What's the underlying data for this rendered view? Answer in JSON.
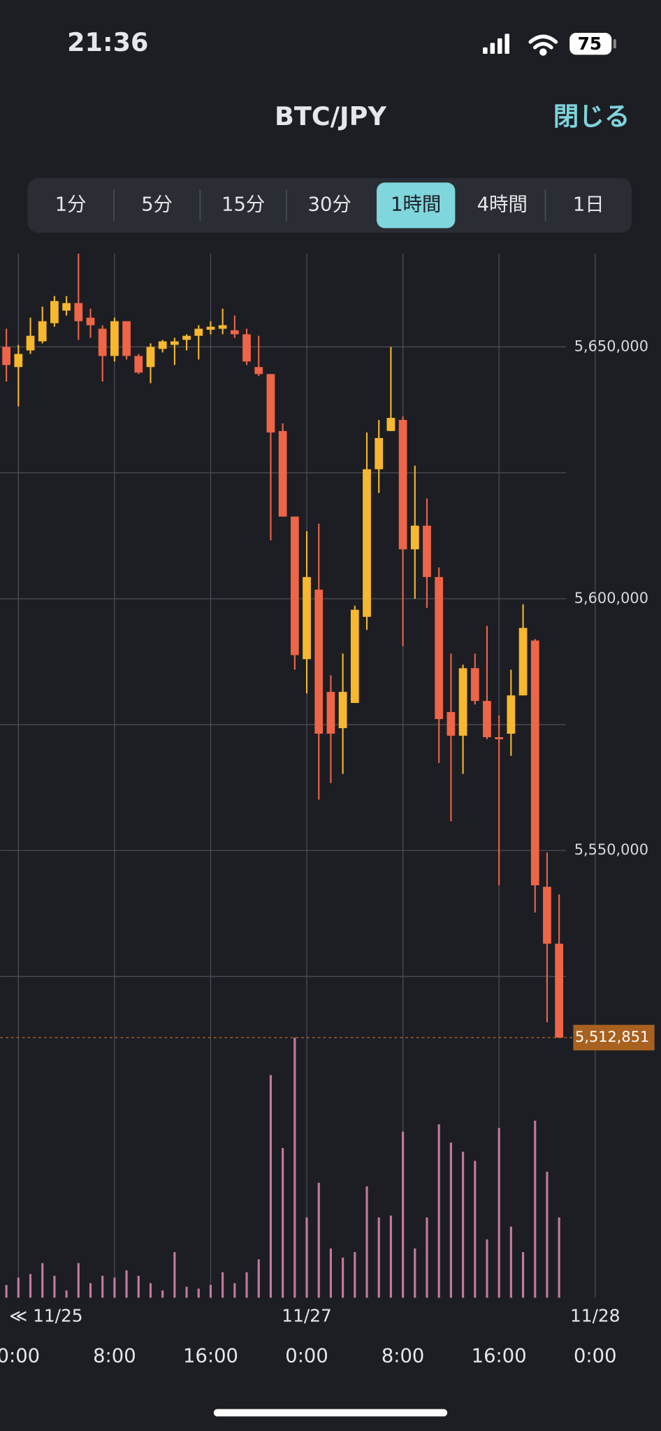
{
  "status_bar": {
    "time": "21:36",
    "battery": "75"
  },
  "header": {
    "title": "BTC/JPY",
    "close": "閉じる"
  },
  "tabs": {
    "items": [
      "1分",
      "5分",
      "15分",
      "30分",
      "1時間",
      "4時間",
      "1日"
    ],
    "selected": 4
  },
  "chart_data": {
    "type": "candlestick",
    "up_color": "#f7b82d",
    "down_color": "#ee6548",
    "volume_color": "#c47aa0",
    "grid": true,
    "x": [
      -1,
      0,
      1,
      2,
      3,
      4,
      5,
      6,
      7,
      8,
      9,
      10,
      11,
      12,
      13,
      14,
      15,
      16,
      17,
      18,
      19,
      20,
      21,
      22,
      23,
      24,
      25,
      26,
      27,
      28,
      29,
      30,
      31,
      32,
      33,
      34,
      35,
      36,
      37,
      38,
      39,
      40,
      41,
      42,
      43,
      44,
      45
    ],
    "open": [
      5650000,
      5646000,
      5649300,
      5651100,
      5654700,
      5657200,
      5658700,
      5655800,
      5653600,
      5648200,
      5655100,
      5648200,
      5646000,
      5649600,
      5650400,
      5651400,
      5652200,
      5653400,
      5653600,
      5653300,
      5652500,
      5646000,
      5644600,
      5633300,
      5616300,
      5588000,
      5601800,
      5581500,
      5574300,
      5579300,
      5596400,
      5625700,
      5633300,
      5635500,
      5609800,
      5614500,
      5604300,
      5577500,
      5572800,
      5586200,
      5579700,
      5572500,
      5573200,
      5580800,
      5591700,
      5542800,
      5531500
    ],
    "high": [
      5653600,
      5650400,
      5655800,
      5658000,
      5660100,
      5660100,
      5668500,
      5657600,
      5654300,
      5655800,
      5655100,
      5648600,
      5650700,
      5651400,
      5651800,
      5652500,
      5654300,
      5655100,
      5657600,
      5656200,
      5653600,
      5652200,
      5644600,
      5634800,
      5616300,
      5613400,
      5614900,
      5584800,
      5589100,
      5598600,
      5633000,
      5635500,
      5650000,
      5636200,
      5626400,
      5619900,
      5606200,
      5589100,
      5586900,
      5589100,
      5594600,
      5576800,
      5585900,
      5598900,
      5592000,
      5549600,
      5541300
    ],
    "low": [
      5643100,
      5638200,
      5648600,
      5650700,
      5654000,
      5656200,
      5651400,
      5651800,
      5643100,
      5647100,
      5647500,
      5644600,
      5642800,
      5648900,
      5646400,
      5649300,
      5647500,
      5652500,
      5652500,
      5651800,
      5646400,
      5644200,
      5611600,
      5616300,
      5585900,
      5581200,
      5560100,
      5563400,
      5565200,
      5579300,
      5593800,
      5621000,
      5633300,
      5590600,
      5600000,
      5598200,
      5567400,
      5555800,
      5565200,
      5579000,
      5572100,
      5543100,
      5568800,
      5580800,
      5537700,
      5515900,
      5512851
    ],
    "close": [
      5646400,
      5648600,
      5652200,
      5655100,
      5659100,
      5658700,
      5655100,
      5654300,
      5648200,
      5655100,
      5648200,
      5644900,
      5650000,
      5651100,
      5651100,
      5652200,
      5653600,
      5654000,
      5654300,
      5652500,
      5647100,
      5644600,
      5633000,
      5616300,
      5588800,
      5604300,
      5573200,
      5573200,
      5581500,
      5597800,
      5625700,
      5631900,
      5635900,
      5609800,
      5614500,
      5604300,
      5576100,
      5572800,
      5586200,
      5579700,
      5572500,
      5572100,
      5580800,
      5594200,
      5543100,
      5531500,
      5512851
    ],
    "volume": [
      14,
      22,
      26,
      38,
      24,
      8,
      38,
      16,
      24,
      22,
      30,
      24,
      16,
      8,
      50,
      12,
      10,
      14,
      28,
      16,
      28,
      42,
      244,
      164,
      285,
      88,
      126,
      54,
      44,
      50,
      122,
      88,
      90,
      182,
      54,
      88,
      190,
      170,
      160,
      150,
      64,
      186,
      78,
      50,
      194,
      138,
      88
    ],
    "xlim": [
      -1.52,
      53.47
    ],
    "ylim": [
      5461200,
      5668500
    ],
    "yticks": [
      {
        "value": 5550000,
        "label": "5,550,000"
      },
      {
        "value": 5600000,
        "label": "5,600,000"
      },
      {
        "value": 5650000,
        "label": "5,650,000"
      }
    ],
    "minor_grid": [
      5525000,
      5575000,
      5625000
    ],
    "xticks": [
      {
        "value": 0,
        "label": "0:00"
      },
      {
        "value": 8,
        "label": "8:00"
      },
      {
        "value": 16,
        "label": "16:00"
      },
      {
        "value": 24,
        "label": "0:00"
      },
      {
        "value": 32,
        "label": "8:00"
      },
      {
        "value": 40,
        "label": "16:00"
      },
      {
        "value": 48,
        "label": "0:00"
      }
    ],
    "date_ticks": [
      {
        "value": 24,
        "label": "11/27"
      },
      {
        "value": 48,
        "label": "11/28"
      }
    ],
    "start_date_label": "≪ 11/25",
    "last_price": {
      "value": 5512851,
      "label": "5,512,851"
    }
  }
}
